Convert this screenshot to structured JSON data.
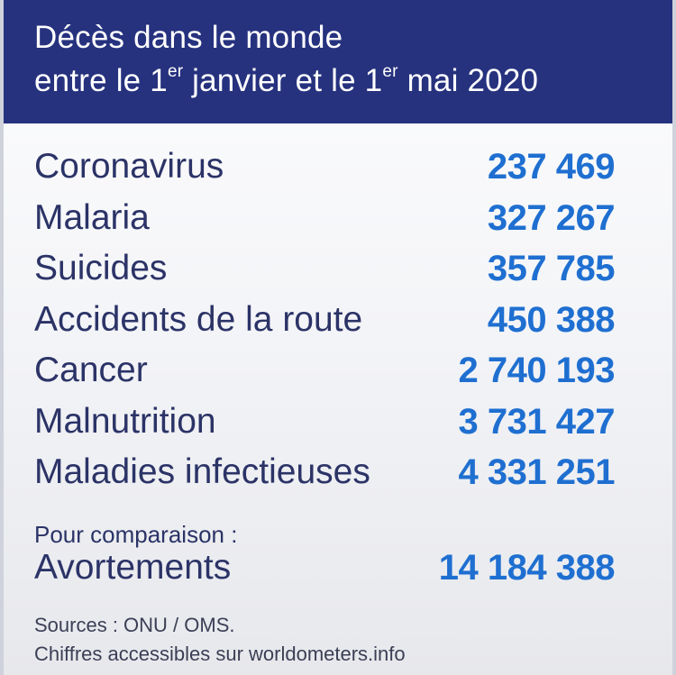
{
  "header": {
    "line1": "Décès dans le monde",
    "line2_part1": "entre le 1",
    "line2_sup1": "er",
    "line2_part2": " janvier et le 1",
    "line2_sup2": "er",
    "line2_part3": " mai 2020"
  },
  "rows": [
    {
      "label": "Coronavirus",
      "value": "237 469"
    },
    {
      "label": "Malaria",
      "value": "327 267"
    },
    {
      "label": "Suicides",
      "value": "357 785"
    },
    {
      "label": "Accidents de la route",
      "value": "450 388"
    },
    {
      "label": "Cancer",
      "value": "2 740 193"
    },
    {
      "label": "Malnutrition",
      "value": "3 731 427"
    },
    {
      "label": "Maladies infectieuses",
      "value": "4 331 251"
    }
  ],
  "comparison": {
    "intro": "Pour comparaison :",
    "label": "Avortements",
    "value": "14 184 388"
  },
  "sources": {
    "line1": "Sources : ONU / OMS.",
    "line2": "Chiffres accessibles sur worldometers.info"
  },
  "colors": {
    "header_background": "#26327e",
    "label_text": "#2b3367",
    "value_text": "#1f6fd1"
  }
}
